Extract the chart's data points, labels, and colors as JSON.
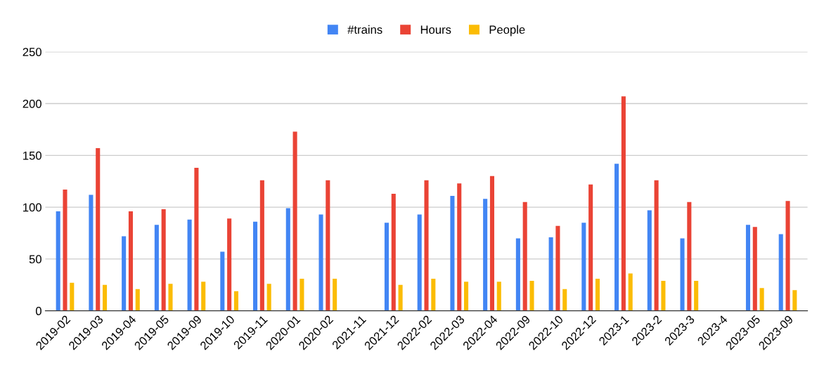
{
  "chart_data": {
    "type": "bar",
    "categories": [
      "2019-02",
      "2019-03",
      "2019-04",
      "2019-05",
      "2019-09",
      "2019-10",
      "2019-11",
      "2020-01",
      "2020-02",
      "2021-11",
      "2021-12",
      "2022-02",
      "2022-03",
      "2022-04",
      "2022-09",
      "2022-10",
      "2022-12",
      "2023-1",
      "2023-2",
      "2023-3",
      "2023-4",
      "2023-05",
      "2023-09"
    ],
    "series": [
      {
        "name": "#trains",
        "color": "#4285f4",
        "values": [
          96,
          112,
          72,
          83,
          88,
          57,
          86,
          99,
          93,
          null,
          85,
          93,
          111,
          108,
          70,
          71,
          85,
          142,
          97,
          70,
          null,
          83,
          74
        ]
      },
      {
        "name": "Hours",
        "color": "#ea4335",
        "values": [
          117,
          157,
          96,
          98,
          138,
          89,
          126,
          173,
          126,
          null,
          113,
          126,
          123,
          130,
          105,
          82,
          122,
          207,
          126,
          105,
          null,
          81,
          106
        ]
      },
      {
        "name": "People",
        "color": "#fbbc04",
        "values": [
          27,
          25,
          21,
          26,
          28,
          19,
          26,
          31,
          31,
          null,
          25,
          31,
          28,
          28,
          29,
          21,
          31,
          36,
          29,
          29,
          null,
          22,
          20
        ]
      }
    ],
    "ylim": [
      0,
      250
    ],
    "yticks": [
      0,
      50,
      100,
      150,
      200,
      250
    ],
    "grid": "y",
    "legend": "top"
  }
}
